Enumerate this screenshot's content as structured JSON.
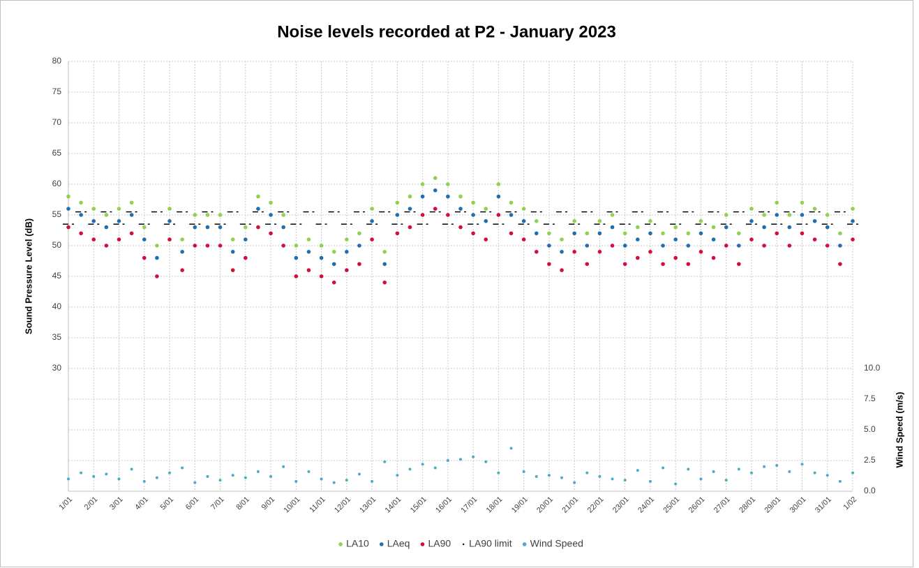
{
  "chart_data": {
    "type": "scatter",
    "title": "Noise levels recorded at P2 - January 2023",
    "ylabel": "Sound Pressure Level (dB)",
    "y2label": "Wind Speed (m/s)",
    "x": [
      0,
      0.5,
      1,
      1.5,
      2,
      2.5,
      3,
      3.5,
      4,
      4.5,
      5,
      5.5,
      6,
      6.5,
      7,
      7.5,
      8,
      8.5,
      9,
      9.5,
      10,
      10.5,
      11,
      11.5,
      12,
      12.5,
      13,
      13.5,
      14,
      14.5,
      15,
      15.5,
      16,
      16.5,
      17,
      17.5,
      18,
      18.5,
      19,
      19.5,
      20,
      20.5,
      21,
      21.5,
      22,
      22.5,
      23,
      23.5,
      24,
      24.5,
      25,
      25.5,
      26,
      26.5,
      27,
      27.5,
      28,
      28.5,
      29,
      29.5,
      30,
      30.5,
      31
    ],
    "series": [
      {
        "name": "LA10",
        "color": "#92d050",
        "values": [
          58,
          57,
          56,
          55,
          56,
          57,
          53,
          50,
          56,
          51,
          55,
          55,
          55,
          51,
          53,
          58,
          57,
          55,
          50,
          51,
          50,
          49,
          51,
          52,
          56,
          49,
          57,
          58,
          60,
          61,
          60,
          58,
          57,
          56,
          60,
          57,
          56,
          54,
          52,
          51,
          54,
          52,
          54,
          55,
          52,
          53,
          54,
          52,
          53,
          52,
          54,
          53,
          55,
          52,
          56,
          55,
          57,
          55,
          57,
          56,
          55,
          52,
          56
        ]
      },
      {
        "name": "LAeq",
        "color": "#1f6fb0",
        "values": [
          56,
          55,
          54,
          53,
          54,
          55,
          51,
          48,
          54,
          49,
          53,
          53,
          53,
          49,
          51,
          56,
          55,
          53,
          48,
          49,
          48,
          47,
          49,
          50,
          54,
          47,
          55,
          56,
          58,
          59,
          58,
          56,
          55,
          54,
          58,
          55,
          54,
          52,
          50,
          49,
          52,
          50,
          52,
          53,
          50,
          51,
          52,
          50,
          51,
          50,
          52,
          51,
          53,
          50,
          54,
          53,
          55,
          53,
          55,
          54,
          53,
          50,
          54
        ]
      },
      {
        "name": "LA90",
        "color": "#d0103a",
        "values": [
          53,
          52,
          51,
          50,
          51,
          52,
          48,
          45,
          51,
          46,
          50,
          50,
          50,
          46,
          48,
          53,
          52,
          50,
          45,
          46,
          45,
          44,
          46,
          47,
          51,
          44,
          52,
          53,
          55,
          56,
          55,
          53,
          52,
          51,
          55,
          52,
          51,
          49,
          47,
          46,
          49,
          47,
          49,
          50,
          47,
          48,
          49,
          47,
          48,
          47,
          49,
          48,
          50,
          47,
          51,
          50,
          52,
          50,
          52,
          51,
          50,
          47,
          51
        ]
      },
      {
        "name": "LA90 limit",
        "color": "#000000",
        "values": [
          53.5,
          55.5,
          53.5,
          55.5,
          53.5,
          55.5,
          53.5,
          55.5,
          53.5,
          55.5,
          53.5,
          55.5,
          53.5,
          55.5,
          53.5,
          55.5,
          53.5,
          55.5,
          53.5,
          55.5,
          53.5,
          55.5,
          53.5,
          55.5,
          53.5,
          55.5,
          53.5,
          55.5,
          53.5,
          55.5,
          53.5,
          55.5,
          53.5,
          55.5,
          53.5,
          55.5,
          53.5,
          55.5,
          53.5,
          55.5,
          53.5,
          55.5,
          53.5,
          55.5,
          53.5,
          55.5,
          53.5,
          55.5,
          53.5,
          55.5,
          53.5,
          55.5,
          53.5,
          55.5,
          53.5,
          55.5,
          53.5,
          55.5,
          53.5,
          55.5,
          53.5,
          55.5,
          53.5
        ]
      },
      {
        "name": "Wind Speed",
        "color": "#4bacc6",
        "axis": "y2",
        "values": [
          1.0,
          1.5,
          1.2,
          1.4,
          1.0,
          1.8,
          0.8,
          1.1,
          1.5,
          1.9,
          0.7,
          1.2,
          0.9,
          1.3,
          1.1,
          1.6,
          1.2,
          2.0,
          0.8,
          1.6,
          1.0,
          0.7,
          0.9,
          1.4,
          0.8,
          2.4,
          1.3,
          1.8,
          2.2,
          1.9,
          2.5,
          2.6,
          2.8,
          2.4,
          1.5,
          3.5,
          1.6,
          1.2,
          1.3,
          1.1,
          0.7,
          1.5,
          1.2,
          1.0,
          0.9,
          1.7,
          0.8,
          1.9,
          0.6,
          1.8,
          1.0,
          1.6,
          0.9,
          1.8,
          1.5,
          2.0,
          2.1,
          1.6,
          2.2,
          1.5,
          1.3,
          0.8,
          1.5
        ]
      }
    ],
    "xlim": [
      0,
      31
    ],
    "xticks": [
      {
        "value": 0,
        "label": "1/01"
      },
      {
        "value": 1,
        "label": "2/01"
      },
      {
        "value": 2,
        "label": "3/01"
      },
      {
        "value": 3,
        "label": "4/01"
      },
      {
        "value": 4,
        "label": "5/01"
      },
      {
        "value": 5,
        "label": "6/01"
      },
      {
        "value": 6,
        "label": "7/01"
      },
      {
        "value": 7,
        "label": "8/01"
      },
      {
        "value": 8,
        "label": "9/01"
      },
      {
        "value": 9,
        "label": "10/01"
      },
      {
        "value": 10,
        "label": "11/01"
      },
      {
        "value": 11,
        "label": "12/01"
      },
      {
        "value": 12,
        "label": "13/01"
      },
      {
        "value": 13,
        "label": "14/01"
      },
      {
        "value": 14,
        "label": "15/01"
      },
      {
        "value": 15,
        "label": "16/01"
      },
      {
        "value": 16,
        "label": "17/01"
      },
      {
        "value": 17,
        "label": "18/01"
      },
      {
        "value": 18,
        "label": "19/01"
      },
      {
        "value": 19,
        "label": "20/01"
      },
      {
        "value": 20,
        "label": "21/01"
      },
      {
        "value": 21,
        "label": "22/01"
      },
      {
        "value": 22,
        "label": "23/01"
      },
      {
        "value": 23,
        "label": "24/01"
      },
      {
        "value": 24,
        "label": "25/01"
      },
      {
        "value": 25,
        "label": "26/01"
      },
      {
        "value": 26,
        "label": "27/01"
      },
      {
        "value": 27,
        "label": "28/01"
      },
      {
        "value": 28,
        "label": "29/01"
      },
      {
        "value": 29,
        "label": "30/01"
      },
      {
        "value": 30,
        "label": "31/01"
      },
      {
        "value": 31,
        "label": "1/02"
      }
    ],
    "ylim": [
      10,
      80
    ],
    "yticks": [
      30,
      35,
      40,
      45,
      50,
      55,
      60,
      65,
      70,
      75,
      80
    ],
    "y2lim": [
      0,
      35
    ],
    "y2ticks": [
      {
        "value": 0,
        "label": "0.0"
      },
      {
        "value": 2.5,
        "label": "2.5"
      },
      {
        "value": 5,
        "label": "5.0"
      },
      {
        "value": 7.5,
        "label": "7.5"
      },
      {
        "value": 10,
        "label": "10.0"
      }
    ],
    "grid": true,
    "legend": "bottom"
  }
}
